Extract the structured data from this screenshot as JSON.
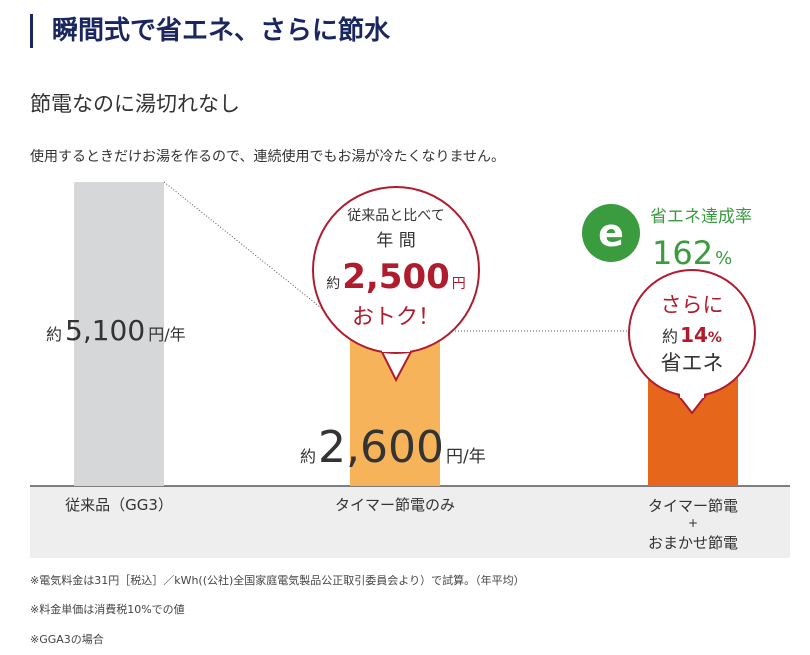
{
  "header": {
    "title": "瞬間式で省エネ、さらに節水"
  },
  "section": {
    "subtitle": "節電なのに湯切れなし",
    "description": "使用するときだけお湯を作るので、連続使用でもお湯が冷たくなりません。"
  },
  "chart_data": {
    "type": "bar",
    "categories": [
      "従来品（GG3）",
      "タイマー節電のみ",
      "タイマー節電＋おまかせ節電"
    ],
    "category_lines": [
      [
        "従来品（GG3）"
      ],
      [
        "タイマー節電のみ"
      ],
      [
        "タイマー節電",
        "+",
        "おまかせ節電"
      ]
    ],
    "values": [
      5100,
      2600,
      2200
    ],
    "unit": "円/年",
    "value_labels": [
      {
        "prefix": "約",
        "number": "5,100",
        "unit": "円/年"
      },
      {
        "prefix": "約",
        "number": "2,600",
        "unit": "円/年"
      }
    ],
    "colors": [
      "#d6d7d9",
      "#f6b35a",
      "#e6661c"
    ],
    "reference_value": 2600,
    "reference_color": "#e6e6e6",
    "axis_band_color": "#eeeeee",
    "ylim": [
      0,
      5100
    ],
    "annotations": {
      "savings_bubble": {
        "line1": "従来品と比べて",
        "line2": "年 間",
        "prefix": "約",
        "amount": "2,500",
        "unit": "円",
        "line4": "おトク！",
        "color": "#b01c2e"
      },
      "eco_badge": {
        "icon": "eco-e-icon",
        "label": "省エネ達成率",
        "value": "162",
        "unit": "%",
        "color": "#3a9b3f"
      },
      "extra_bubble": {
        "line1": "さらに",
        "prefix": "約",
        "value": "14",
        "unit": "%",
        "line3": "省エネ",
        "color": "#b01c2e"
      }
    }
  },
  "notes": [
    "※電気料金は31円［税込］／kWh((公社)全国家庭電気製品公正取引委員会より）で試算。（年平均）",
    "※料金単価は消費税10%での値",
    "※GGA3の場合"
  ]
}
